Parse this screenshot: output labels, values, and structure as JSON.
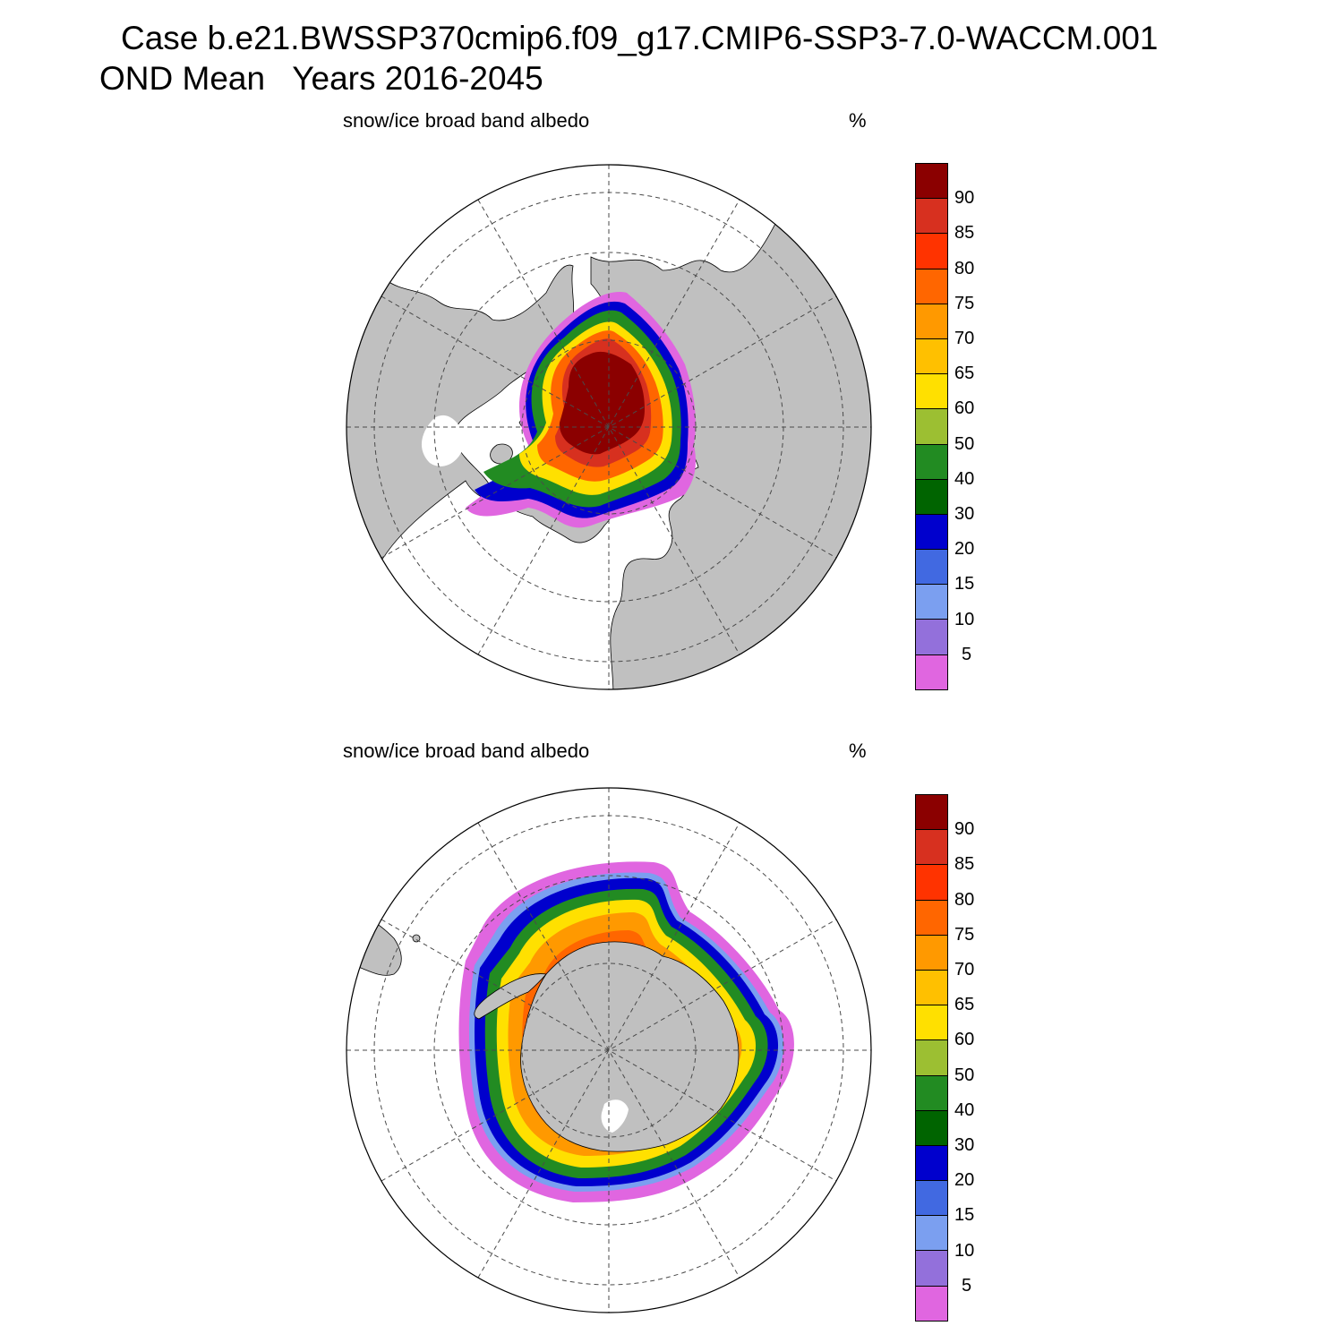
{
  "title": {
    "line1": "Case b.e21.BWSSP370cmip6.f09_g17.CMIP6-SSP3-7.0-WACCM.001",
    "line2": "OND Mean   Years 2016-2045"
  },
  "panels": [
    {
      "name": "north-polar-panel",
      "hemisphere": "north",
      "variable_label": "snow/ice broad band albedo",
      "units": "%"
    },
    {
      "name": "south-polar-panel",
      "hemisphere": "south",
      "variable_label": "snow/ice broad band albedo",
      "units": "%"
    }
  ],
  "colorbar": {
    "colors": [
      "#8b0000",
      "#d7301f",
      "#ff3300",
      "#ff6600",
      "#ff9900",
      "#ffc000",
      "#ffe000",
      "#9cbf32",
      "#228b22",
      "#006400",
      "#0000cd",
      "#4169e1",
      "#7b9ff0",
      "#9370db",
      "#e066e0"
    ],
    "tick_labels": [
      "90",
      "85",
      "80",
      "75",
      "70",
      "65",
      "60",
      "50",
      "40",
      "30",
      "20",
      "15",
      "10",
      "5"
    ]
  },
  "colors": {
    "land": "#c0c0c0",
    "coast": "#000000",
    "grid": "#4a4a4a"
  },
  "chart_data": [
    {
      "type": "polar-contour-map",
      "title": "snow/ice broad band albedo",
      "units": "%",
      "projection": "polar stereographic, North Pole",
      "contour_levels": [
        5,
        10,
        15,
        20,
        30,
        40,
        50,
        60,
        65,
        70,
        75,
        80,
        85,
        90
      ],
      "field_summary": {
        "central_arctic": ">90",
        "ice_edge": "5-30",
        "hudson_bay": "<10"
      }
    },
    {
      "type": "polar-contour-map",
      "title": "snow/ice broad band albedo",
      "units": "%",
      "projection": "polar stereographic, South Pole",
      "contour_levels": [
        5,
        10,
        15,
        20,
        30,
        40,
        50,
        60,
        65,
        70,
        75,
        80,
        85,
        90
      ],
      "field_summary": {
        "coastal_antarctic": "70-80",
        "weddell_sea": "65-75",
        "ice_edge": "5-30"
      }
    }
  ]
}
